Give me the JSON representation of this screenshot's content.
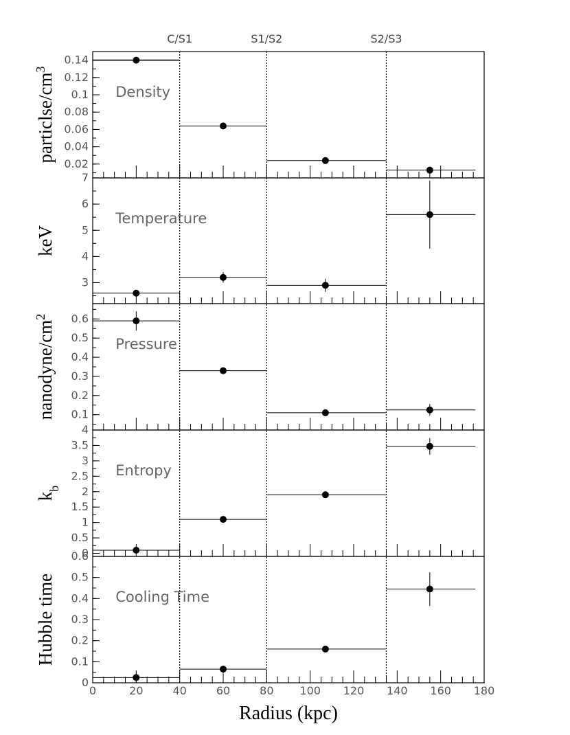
{
  "chart_data": {
    "type": "scatter",
    "xlabel": "Radius (kpc)",
    "xlim": [
      0,
      180
    ],
    "x_ticks": [
      0,
      20,
      40,
      60,
      80,
      100,
      120,
      140,
      160,
      180
    ],
    "dividers": [
      {
        "x": 40,
        "label": "C/S1"
      },
      {
        "x": 80,
        "label": "S1/S2"
      },
      {
        "x": 135,
        "label": "S2/S3"
      }
    ],
    "panels": [
      {
        "name": "density",
        "label": "Density",
        "ylabel": "particlse/cm",
        "ylabel_sup": "3",
        "ylim": [
          0.004,
          0.15
        ],
        "y_ticks": [
          0.02,
          0.04,
          0.06,
          0.08,
          0.1,
          0.12,
          0.14
        ],
        "y_tick_labels": [
          "0.02",
          "0.04",
          "0.06",
          "0.08",
          "0.1",
          "0.12",
          "0.14"
        ],
        "points": [
          {
            "x": 20,
            "xmin": 0,
            "xmax": 40,
            "y": 0.14,
            "yerr": 0.001
          },
          {
            "x": 60,
            "xmin": 40,
            "xmax": 80,
            "y": 0.064,
            "yerr": 0.001
          },
          {
            "x": 107,
            "xmin": 80,
            "xmax": 135,
            "y": 0.024,
            "yerr": 0.001
          },
          {
            "x": 155,
            "xmin": 135,
            "xmax": 176,
            "y": 0.013,
            "yerr": 0.001
          }
        ]
      },
      {
        "name": "temperature",
        "label": "Temperature",
        "ylabel": "keV",
        "ylabel_sup": "",
        "ylim": [
          2.2,
          7
        ],
        "y_ticks": [
          3,
          4,
          5,
          6,
          7
        ],
        "y_tick_labels": [
          "3",
          "4",
          "5",
          "6",
          "7"
        ],
        "points": [
          {
            "x": 20,
            "xmin": 0,
            "xmax": 40,
            "y": 2.6,
            "yerr": 0.1
          },
          {
            "x": 60,
            "xmin": 40,
            "xmax": 80,
            "y": 3.2,
            "yerr": 0.2
          },
          {
            "x": 107,
            "xmin": 80,
            "xmax": 135,
            "y": 2.9,
            "yerr": 0.25
          },
          {
            "x": 155,
            "xmin": 135,
            "xmax": 176,
            "y": 5.6,
            "yerr": 1.3
          }
        ]
      },
      {
        "name": "pressure",
        "label": "Pressure",
        "ylabel": "nanodyne/cm",
        "ylabel_sup": "2",
        "ylim": [
          0.02,
          0.68
        ],
        "y_ticks": [
          0.1,
          0.2,
          0.3,
          0.4,
          0.5,
          0.6
        ],
        "y_tick_labels": [
          "0.1",
          "0.2",
          "0.3",
          "0.4",
          "0.5",
          "0.6"
        ],
        "points": [
          {
            "x": 20,
            "xmin": 0,
            "xmax": 40,
            "y": 0.59,
            "yerr": 0.05
          },
          {
            "x": 60,
            "xmin": 40,
            "xmax": 80,
            "y": 0.33,
            "yerr": 0.01
          },
          {
            "x": 107,
            "xmin": 80,
            "xmax": 135,
            "y": 0.11,
            "yerr": 0.01
          },
          {
            "x": 155,
            "xmin": 135,
            "xmax": 176,
            "y": 0.125,
            "yerr": 0.03
          }
        ]
      },
      {
        "name": "entropy",
        "label": "Entropy",
        "ylabel": "k",
        "ylabel_sub": "b",
        "ylim": [
          -0.1,
          4
        ],
        "y_ticks": [
          0,
          0.5,
          1,
          1.5,
          2,
          2.5,
          3,
          3.5,
          4
        ],
        "y_tick_labels": [
          "0",
          "0.5",
          "1",
          "1.5",
          "2",
          "2.5",
          "3",
          "3.5",
          "4"
        ],
        "points": [
          {
            "x": 20,
            "xmin": 0,
            "xmax": 40,
            "y": 0.1,
            "yerr": 0.05
          },
          {
            "x": 60,
            "xmin": 40,
            "xmax": 80,
            "y": 1.1,
            "yerr": 0.05
          },
          {
            "x": 107,
            "xmin": 80,
            "xmax": 135,
            "y": 1.9,
            "yerr": 0.1
          },
          {
            "x": 155,
            "xmin": 135,
            "xmax": 176,
            "y": 3.47,
            "yerr": 0.27
          }
        ]
      },
      {
        "name": "cooling",
        "label": "Cooling Time",
        "ylabel": "Hubble time",
        "ylabel_sup": "",
        "ylim": [
          0,
          0.6
        ],
        "y_ticks": [
          0,
          0.1,
          0.2,
          0.3,
          0.4,
          0.5,
          0.6
        ],
        "y_tick_labels": [
          "0",
          "0.1",
          "0.2",
          "0.3",
          "0.4",
          "0.5",
          "0.6"
        ],
        "points": [
          {
            "x": 20,
            "xmin": 0,
            "xmax": 40,
            "y": 0.025,
            "yerr": 0.025
          },
          {
            "x": 60,
            "xmin": 40,
            "xmax": 80,
            "y": 0.065,
            "yerr": 0.01
          },
          {
            "x": 107,
            "xmin": 80,
            "xmax": 135,
            "y": 0.16,
            "yerr": 0.01
          },
          {
            "x": 155,
            "xmin": 135,
            "xmax": 176,
            "y": 0.445,
            "yerr": 0.08
          }
        ]
      }
    ]
  }
}
